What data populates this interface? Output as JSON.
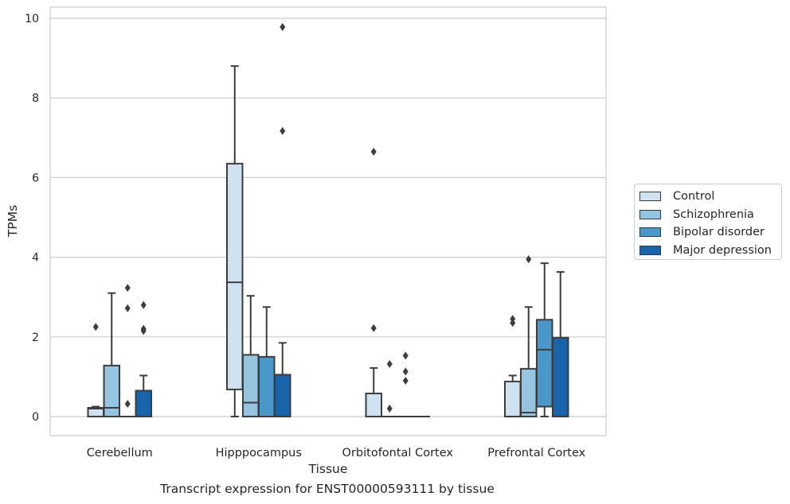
{
  "chart_data": {
    "type": "boxplot",
    "title": "",
    "caption": "Transcript expression for ENST00000593111 by tissue",
    "xlabel": "Tissue",
    "ylabel": "TPMs",
    "ylim": [
      -0.45,
      10.25
    ],
    "yticks": [
      0,
      2,
      4,
      6,
      8,
      10
    ],
    "categories": [
      "Cerebellum",
      "Hipppocampus",
      "Orbitofontal Cortex",
      "Prefrontal Cortex"
    ],
    "grid": true,
    "legend_position": "right, outside",
    "series": [
      {
        "name": "Control",
        "color": "#d0e1f2",
        "boxes": [
          {
            "min": 0,
            "q1": 0,
            "median": 0.2,
            "q3": 0.22,
            "max": 0.25,
            "outliers": [
              2.25
            ]
          },
          {
            "min": 0,
            "q1": 0.68,
            "median": 3.37,
            "q3": 6.35,
            "max": 8.8,
            "outliers": []
          },
          {
            "min": 0,
            "q1": 0,
            "median": 0,
            "q3": 0.58,
            "max": 1.22,
            "outliers": [
              2.22,
              6.65
            ]
          },
          {
            "min": 0,
            "q1": 0,
            "median": 0,
            "q3": 0.88,
            "max": 1.03,
            "outliers": [
              2.35,
              2.45
            ]
          }
        ]
      },
      {
        "name": "Schizophrenia",
        "color": "#94c4df",
        "boxes": [
          {
            "min": 0,
            "q1": 0,
            "median": 0.22,
            "q3": 1.28,
            "max": 3.1,
            "outliers": []
          },
          {
            "min": 0,
            "q1": 0,
            "median": 0.35,
            "q3": 1.55,
            "max": 3.03,
            "outliers": []
          },
          {
            "min": 0,
            "q1": 0,
            "median": 0,
            "q3": 0,
            "max": 0,
            "outliers": [
              0.2,
              1.32
            ]
          },
          {
            "min": 0,
            "q1": 0,
            "median": 0.1,
            "q3": 1.2,
            "max": 2.75,
            "outliers": [
              3.95
            ]
          }
        ]
      },
      {
        "name": "Bipolar disorder",
        "color": "#4a98c9",
        "boxes": [
          {
            "min": 0,
            "q1": 0,
            "median": 0,
            "q3": 0,
            "max": 0,
            "outliers": [
              0.32,
              2.72,
              3.23
            ]
          },
          {
            "min": 0,
            "q1": 0,
            "median": 0,
            "q3": 1.5,
            "max": 2.75,
            "outliers": []
          },
          {
            "min": 0,
            "q1": 0,
            "median": 0,
            "q3": 0,
            "max": 0,
            "outliers": [
              0.9,
              1.13,
              1.53
            ]
          },
          {
            "min": 0,
            "q1": 0.25,
            "median": 1.68,
            "q3": 2.43,
            "max": 3.85,
            "outliers": []
          }
        ]
      },
      {
        "name": "Major depression",
        "color": "#1764ab",
        "boxes": [
          {
            "min": 0,
            "q1": 0,
            "median": 0,
            "q3": 0.65,
            "max": 1.03,
            "outliers": [
              2.15,
              2.2,
              2.8
            ]
          },
          {
            "min": 0,
            "q1": 0,
            "median": 0,
            "q3": 1.05,
            "max": 1.85,
            "outliers": [
              7.17,
              9.78
            ]
          },
          {
            "min": 0,
            "q1": 0,
            "median": 0,
            "q3": 0,
            "max": 0,
            "outliers": []
          },
          {
            "min": 0,
            "q1": 0,
            "median": 0,
            "q3": 1.98,
            "max": 3.63,
            "outliers": []
          }
        ]
      }
    ]
  }
}
